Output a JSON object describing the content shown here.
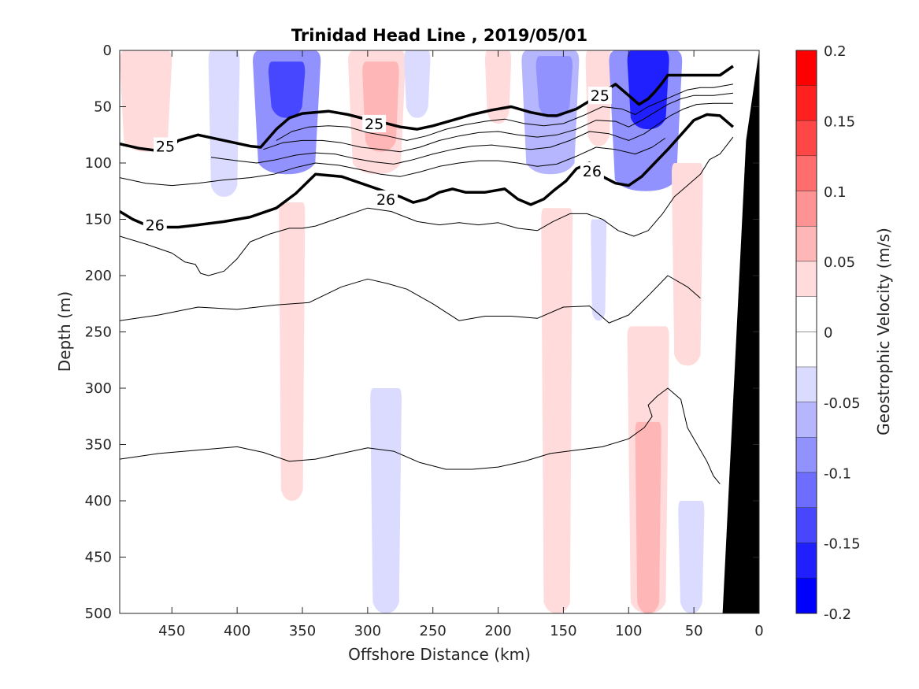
{
  "chart_data": {
    "type": "contour",
    "title": "Trinidad Head Line , 2019/05/01",
    "xlabel": "Offshore Distance (km)",
    "ylabel": "Depth (m)",
    "xlim": [
      490,
      0
    ],
    "ylim": [
      0,
      500
    ],
    "x_ticks": [
      450,
      400,
      350,
      300,
      250,
      200,
      150,
      100,
      50,
      0
    ],
    "y_ticks": [
      0,
      50,
      100,
      150,
      200,
      250,
      300,
      350,
      400,
      450,
      500
    ],
    "colorbar": {
      "label": "Geostrophic Velocity (m/s)",
      "min": -0.2,
      "max": 0.2,
      "tick_values": [
        0.2,
        0.15,
        0.1,
        0.05,
        0,
        -0.05,
        -0.1,
        -0.15,
        -0.2
      ],
      "tick_labels": [
        "0.2",
        "0.15",
        "0.1",
        "0.05",
        "0",
        "-0.05",
        "-0.1",
        "-0.15",
        "-0.2"
      ],
      "levels": [
        {
          "min": 0.175,
          "max": 0.2,
          "color": "#ff0000"
        },
        {
          "min": 0.15,
          "max": 0.175,
          "color": "#ff2020"
        },
        {
          "min": 0.125,
          "max": 0.15,
          "color": "#ff4747"
        },
        {
          "min": 0.1,
          "max": 0.125,
          "color": "#ff6d6d"
        },
        {
          "min": 0.075,
          "max": 0.1,
          "color": "#ff9292"
        },
        {
          "min": 0.05,
          "max": 0.075,
          "color": "#ffb6b6"
        },
        {
          "min": 0.025,
          "max": 0.05,
          "color": "#ffdbdb"
        },
        {
          "min": 0.0,
          "max": 0.025,
          "color": "#ffffff"
        },
        {
          "min": -0.025,
          "max": 0.0,
          "color": "#ffffff"
        },
        {
          "min": -0.05,
          "max": -0.025,
          "color": "#dbdbff"
        },
        {
          "min": -0.075,
          "max": -0.05,
          "color": "#b6b6ff"
        },
        {
          "min": -0.1,
          "max": -0.075,
          "color": "#9292ff"
        },
        {
          "min": -0.125,
          "max": -0.1,
          "color": "#6d6dff"
        },
        {
          "min": -0.15,
          "max": -0.125,
          "color": "#4747ff"
        },
        {
          "min": -0.175,
          "max": -0.15,
          "color": "#2020ff"
        },
        {
          "min": -0.2,
          "max": -0.175,
          "color": "#0000ff"
        }
      ]
    },
    "velocity_features": [
      {
        "x_center": 470,
        "x_halfwidth": 20,
        "depth_top": 0,
        "depth_bottom": 90,
        "value": 0.03
      },
      {
        "x_center": 410,
        "x_halfwidth": 12,
        "depth_top": 0,
        "depth_bottom": 130,
        "value": -0.03
      },
      {
        "x_center": 362,
        "x_halfwidth": 26,
        "depth_top": 0,
        "depth_bottom": 110,
        "value": -0.09
      },
      {
        "x_center": 362,
        "x_halfwidth": 14,
        "depth_top": 10,
        "depth_bottom": 60,
        "value": -0.13
      },
      {
        "x_center": 358,
        "x_halfwidth": 10,
        "depth_top": 135,
        "depth_bottom": 400,
        "value": 0.03
      },
      {
        "x_center": 293,
        "x_halfwidth": 22,
        "depth_top": 0,
        "depth_bottom": 110,
        "value": 0.03
      },
      {
        "x_center": 290,
        "x_halfwidth": 14,
        "depth_top": 10,
        "depth_bottom": 90,
        "value": 0.055
      },
      {
        "x_center": 262,
        "x_halfwidth": 10,
        "depth_top": 0,
        "depth_bottom": 60,
        "value": -0.03
      },
      {
        "x_center": 286,
        "x_halfwidth": 12,
        "depth_top": 300,
        "depth_bottom": 500,
        "value": -0.03
      },
      {
        "x_center": 200,
        "x_halfwidth": 10,
        "depth_top": 0,
        "depth_bottom": 65,
        "value": 0.04
      },
      {
        "x_center": 160,
        "x_halfwidth": 22,
        "depth_top": 0,
        "depth_bottom": 110,
        "value": -0.06
      },
      {
        "x_center": 157,
        "x_halfwidth": 14,
        "depth_top": 5,
        "depth_bottom": 60,
        "value": -0.1
      },
      {
        "x_center": 155,
        "x_halfwidth": 12,
        "depth_top": 140,
        "depth_bottom": 500,
        "value": 0.03
      },
      {
        "x_center": 123,
        "x_halfwidth": 10,
        "depth_top": 0,
        "depth_bottom": 85,
        "value": 0.04
      },
      {
        "x_center": 123,
        "x_halfwidth": 6,
        "depth_top": 150,
        "depth_bottom": 240,
        "value": -0.03
      },
      {
        "x_center": 87,
        "x_halfwidth": 28,
        "depth_top": 0,
        "depth_bottom": 125,
        "value": -0.1
      },
      {
        "x_center": 85,
        "x_halfwidth": 16,
        "depth_top": 0,
        "depth_bottom": 70,
        "value": -0.16
      },
      {
        "x_center": 85,
        "x_halfwidth": 16,
        "depth_top": 245,
        "depth_bottom": 500,
        "value": 0.04
      },
      {
        "x_center": 85,
        "x_halfwidth": 10,
        "depth_top": 330,
        "depth_bottom": 500,
        "value": 0.07
      },
      {
        "x_center": 55,
        "x_halfwidth": 12,
        "depth_top": 100,
        "depth_bottom": 280,
        "value": 0.04
      },
      {
        "x_center": 52,
        "x_halfwidth": 10,
        "depth_top": 400,
        "depth_bottom": 500,
        "value": -0.03
      }
    ],
    "isopycnals": [
      {
        "value": 25,
        "label": "25",
        "bold": true,
        "x": [
          490,
          475,
          455,
          445,
          430,
          410,
          390,
          382,
          370,
          360,
          350,
          330,
          315,
          295,
          285,
          275,
          262,
          250,
          235,
          220,
          205,
          190,
          175,
          162,
          155,
          140,
          130,
          110,
          100,
          92,
          85,
          80,
          75,
          70,
          60,
          50,
          40,
          30,
          20
        ],
        "y": [
          83,
          87,
          90,
          80,
          75,
          80,
          85,
          86,
          70,
          60,
          56,
          54,
          57,
          63,
          65,
          68,
          70,
          67,
          62,
          57,
          53,
          50,
          55,
          58,
          58,
          52,
          45,
          30,
          40,
          48,
          43,
          37,
          30,
          22,
          22,
          22,
          22,
          22,
          14
        ],
        "labels": [
          {
            "x": 455,
            "y": 85,
            "text": "25"
          },
          {
            "x": 295,
            "y": 65,
            "text": "25"
          },
          {
            "x": 122,
            "y": 40,
            "text": "25"
          }
        ]
      },
      {
        "value": 26,
        "label": "26",
        "bold": true,
        "x": [
          490,
          480,
          470,
          460,
          445,
          430,
          410,
          390,
          370,
          355,
          340,
          320,
          300,
          285,
          275,
          265,
          255,
          245,
          235,
          225,
          210,
          195,
          185,
          175,
          165,
          158,
          148,
          140,
          130,
          120,
          110,
          100,
          90,
          80,
          70,
          60,
          50,
          40,
          30,
          20
        ],
        "y": [
          143,
          150,
          155,
          157,
          157,
          155,
          152,
          148,
          140,
          127,
          110,
          112,
          120,
          126,
          130,
          135,
          132,
          126,
          123,
          126,
          126,
          123,
          132,
          137,
          132,
          125,
          116,
          105,
          100,
          112,
          118,
          120,
          112,
          100,
          88,
          75,
          62,
          57,
          58,
          68
        ],
        "labels": [
          {
            "x": 463,
            "y": 155,
            "text": "26"
          },
          {
            "x": 286,
            "y": 132,
            "text": "26"
          },
          {
            "x": 128,
            "y": 107,
            "text": "26"
          }
        ]
      },
      {
        "value": 25.2,
        "bold": false,
        "x": [
          370,
          358,
          345,
          330,
          315,
          300,
          285,
          270,
          255,
          240,
          225,
          210,
          195,
          180,
          165,
          150,
          135,
          120,
          105,
          95,
          85,
          75,
          65,
          55,
          45,
          35,
          20
        ],
        "y": [
          80,
          72,
          68,
          67,
          68,
          73,
          76,
          80,
          76,
          70,
          66,
          63,
          61,
          65,
          67,
          65,
          58,
          50,
          52,
          57,
          50,
          45,
          40,
          35,
          33,
          33,
          30
        ],
        "labels": []
      },
      {
        "value": 25.4,
        "bold": false,
        "x": [
          380,
          365,
          350,
          335,
          320,
          305,
          290,
          275,
          260,
          245,
          230,
          215,
          200,
          185,
          170,
          155,
          140,
          125,
          110,
          100,
          90,
          80,
          70,
          60,
          50,
          35,
          20
        ],
        "y": [
          88,
          82,
          80,
          80,
          82,
          86,
          88,
          90,
          86,
          80,
          76,
          73,
          72,
          75,
          77,
          75,
          70,
          62,
          63,
          68,
          62,
          55,
          48,
          43,
          40,
          40,
          38
        ],
        "labels": []
      },
      {
        "value": 25.6,
        "bold": false,
        "x": [
          420,
          400,
          385,
          370,
          355,
          340,
          325,
          310,
          295,
          280,
          265,
          250,
          235,
          220,
          205,
          190,
          175,
          160,
          145,
          130,
          115,
          100,
          88,
          78,
          68,
          58,
          48,
          35,
          20
        ],
        "y": [
          95,
          98,
          100,
          97,
          93,
          91,
          92,
          96,
          99,
          101,
          97,
          92,
          88,
          85,
          84,
          86,
          88,
          86,
          80,
          72,
          74,
          80,
          74,
          66,
          58,
          52,
          48,
          47,
          47
        ],
        "labels": []
      },
      {
        "value": 25.8,
        "bold": false,
        "x": [
          490,
          470,
          450,
          430,
          410,
          390,
          372,
          355,
          340,
          322,
          305,
          290,
          275,
          260,
          245,
          230,
          215,
          200,
          185,
          170,
          155,
          140,
          125,
          110,
          95,
          82,
          72
        ],
        "y": [
          113,
          118,
          120,
          118,
          115,
          113,
          110,
          104,
          100,
          102,
          106,
          110,
          112,
          108,
          103,
          100,
          98,
          98,
          100,
          103,
          101,
          94,
          86,
          88,
          92,
          86,
          78
        ],
        "labels": []
      },
      {
        "value": 26.2,
        "bold": false,
        "x": [
          490,
          470,
          450,
          440,
          432,
          428,
          422,
          410,
          400,
          390,
          375,
          360,
          350,
          340,
          320,
          300,
          282,
          262,
          245,
          230,
          215,
          200,
          185,
          170,
          158,
          145,
          132,
          120,
          108,
          96,
          85,
          74,
          65,
          55,
          45,
          38,
          30,
          20
        ],
        "y": [
          165,
          172,
          180,
          188,
          190,
          198,
          200,
          196,
          185,
          170,
          163,
          158,
          158,
          156,
          148,
          140,
          143,
          152,
          155,
          153,
          155,
          153,
          158,
          160,
          152,
          145,
          145,
          150,
          160,
          165,
          160,
          145,
          130,
          120,
          110,
          97,
          92,
          77
        ],
        "labels": []
      },
      {
        "value": 26.4,
        "bold": false,
        "x": [
          490,
          460,
          430,
          400,
          370,
          345,
          320,
          300,
          285,
          270,
          250,
          230,
          210,
          190,
          170,
          150,
          130,
          115,
          100,
          85,
          70,
          55,
          45
        ],
        "y": [
          240,
          235,
          228,
          230,
          226,
          224,
          210,
          203,
          207,
          212,
          225,
          240,
          236,
          236,
          238,
          228,
          227,
          242,
          235,
          218,
          200,
          210,
          220
        ],
        "labels": []
      },
      {
        "value": 26.6,
        "bold": false,
        "x": [
          490,
          460,
          430,
          400,
          380,
          360,
          340,
          320,
          300,
          280,
          260,
          240,
          220,
          200,
          180,
          160,
          140,
          120,
          100,
          88,
          82,
          85,
          78,
          70,
          60,
          55,
          50,
          45,
          40,
          35,
          30
        ],
        "y": [
          363,
          358,
          355,
          352,
          357,
          365,
          363,
          358,
          353,
          356,
          366,
          372,
          372,
          370,
          365,
          358,
          355,
          352,
          345,
          335,
          325,
          315,
          307,
          300,
          310,
          335,
          345,
          355,
          365,
          378,
          385
        ],
        "labels": []
      }
    ],
    "bottom_topography": {
      "color": "#000000",
      "points": [
        {
          "x": 0,
          "y": 0
        },
        {
          "x": 10,
          "y": 80
        },
        {
          "x": 28,
          "y": 500
        },
        {
          "x": 0,
          "y": 500
        }
      ]
    }
  }
}
